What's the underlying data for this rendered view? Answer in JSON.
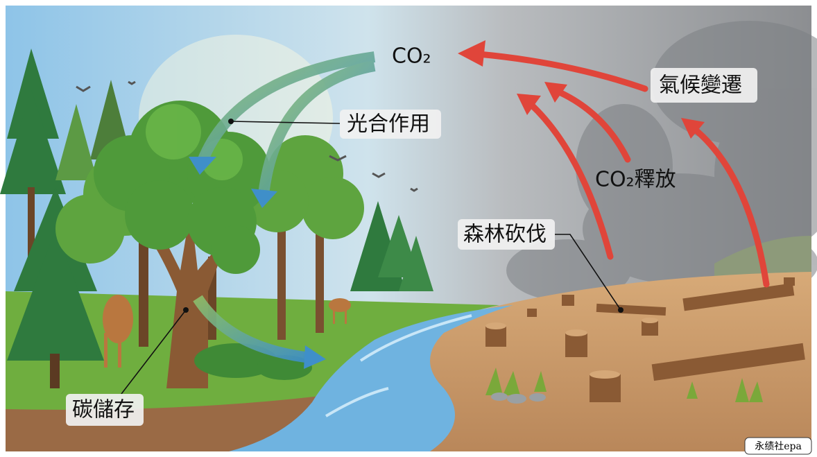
{
  "labels": {
    "co2": "CO₂",
    "photosynthesis": "光合作用",
    "climate_change": "氣候變遷",
    "co2_release": "CO₂釋放",
    "deforestation": "森林砍伐",
    "carbon_storage": "碳儲存"
  },
  "watermark": "永绩社epa"
}
